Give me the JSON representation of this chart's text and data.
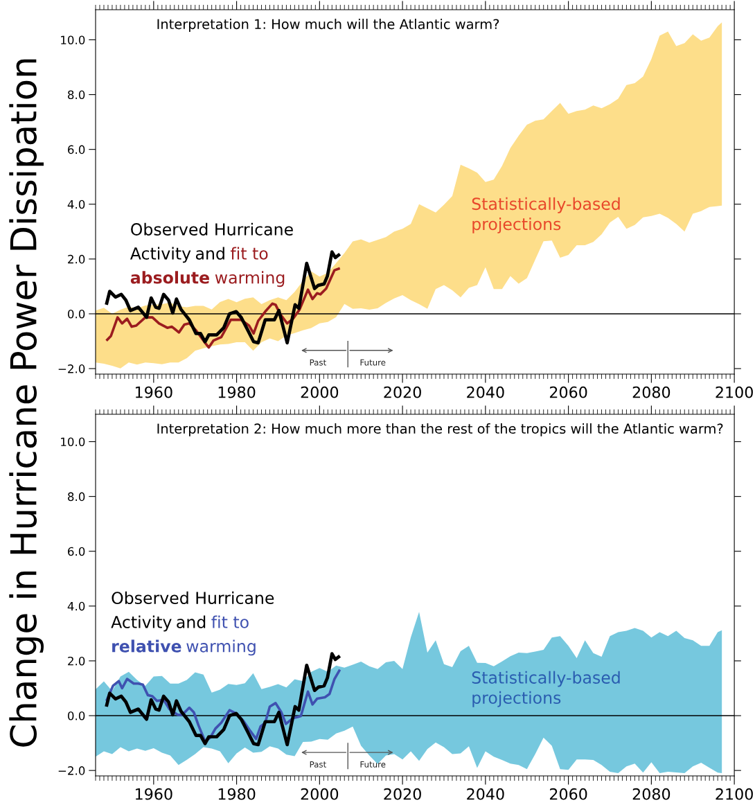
{
  "chart_data": [
    {
      "type": "line",
      "title": "Interpretation 1: How much will the Atlantic warm?",
      "ylabel": "Change in Hurricane Power Dissipation",
      "xlim": [
        1946,
        2100
      ],
      "xticks": [
        1960,
        1980,
        2000,
        2020,
        2040,
        2060,
        2080,
        2100
      ],
      "ylim": [
        -2.2,
        11.1
      ],
      "yticks": [
        {
          "value": -2,
          "label": "−2.0"
        },
        {
          "value": 0,
          "label": "0.0"
        },
        {
          "value": 2,
          "label": "2.0"
        },
        {
          "value": 4,
          "label": "4.0"
        },
        {
          "value": 6,
          "label": "6.0"
        },
        {
          "value": 8,
          "label": "8.0"
        },
        {
          "value": 10,
          "label": "10.0"
        }
      ],
      "ref_lines": [
        {
          "axis": "y",
          "value": 0,
          "color": "#000000"
        }
      ],
      "annotations": [
        "and",
        "Past",
        "Future",
        "Statistically-based\nprojections"
      ],
      "series": [
        {
          "color": "#fdde8a",
          "values": [
            null,
            null,
            null,
            null,
            null,
            null,
            null,
            null,
            null,
            null,
            null,
            null,
            null,
            null,
            null,
            null,
            null,
            null,
            null,
            null,
            null,
            null,
            null,
            null,
            null,
            null,
            null,
            null,
            null,
            null,
            null,
            null,
            null,
            null,
            null,
            null,
            null,
            null,
            null,
            null,
            null,
            null,
            null,
            null,
            null,
            null,
            null,
            null,
            null,
            null,
            null,
            null,
            null,
            null,
            null,
            null,
            null,
            null,
            null,
            null,
            null,
            null,
            null,
            null,
            null,
            null,
            null,
            null,
            null,
            null,
            null,
            null,
            null,
            null,
            null,
            null,
            null
          ],
          "x": [
            1946,
            1948,
            1950,
            1952,
            1954,
            1956,
            1958,
            1960,
            1962,
            1964,
            1966,
            1968,
            1970,
            1972,
            1974,
            1976,
            1978,
            1980,
            1982,
            1984,
            1986,
            1988,
            1990,
            1992,
            1994,
            1996,
            1998,
            2000,
            2002,
            2004,
            2006,
            2008,
            2010,
            2012,
            2014,
            2016,
            2018,
            2020,
            2022,
            2024,
            2026,
            2028,
            2030,
            2032,
            2034,
            2036,
            2038,
            2040,
            2042,
            2044,
            2046,
            2048,
            2050,
            2052,
            2054,
            2056,
            2058,
            2060,
            2062,
            2064,
            2066,
            2068,
            2070,
            2072,
            2074,
            2076,
            2078,
            2080,
            2082,
            2084,
            2086,
            2088,
            2090,
            2092,
            2094,
            2096,
            2097
          ],
          "upper": [
            0.12,
            0.22,
            0.0,
            0.15,
            0.26,
            0.2,
            0.3,
            0.33,
            0.35,
            0.41,
            0.28,
            0.24,
            0.29,
            0.29,
            0.16,
            0.43,
            0.54,
            0.42,
            0.55,
            0.6,
            0.35,
            0.5,
            0.6,
            0.5,
            0.8,
            1.2,
            1.55,
            1.36,
            1.5,
            1.85,
            2.22,
            2.64,
            2.72,
            2.6,
            2.7,
            2.8,
            3.0,
            3.1,
            3.28,
            4.0,
            3.85,
            3.7,
            3.98,
            4.3,
            5.44,
            5.31,
            5.15,
            4.81,
            4.9,
            5.4,
            6.05,
            6.5,
            6.9,
            7.05,
            7.1,
            7.4,
            7.7,
            7.3,
            7.4,
            7.45,
            7.6,
            7.5,
            7.65,
            7.85,
            8.35,
            8.42,
            8.66,
            9.3,
            10.15,
            10.3,
            9.77,
            9.88,
            10.2,
            9.97,
            10.08,
            10.5,
            10.64
          ],
          "lower": [
            -1.78,
            -1.82,
            -1.9,
            -1.99,
            -1.78,
            -1.85,
            -1.78,
            -1.8,
            -1.84,
            -1.78,
            -1.78,
            -1.62,
            -1.35,
            -1.26,
            -1.18,
            -1.12,
            -1.1,
            -1.04,
            -1.04,
            -1.35,
            -1.04,
            -0.9,
            -1.0,
            -0.79,
            -0.7,
            -0.6,
            -0.52,
            -0.35,
            -0.3,
            -0.12,
            0.36,
            0.18,
            0.2,
            0.15,
            0.2,
            0.4,
            0.56,
            0.68,
            0.5,
            0.35,
            0.18,
            0.9,
            1.05,
            0.86,
            0.6,
            0.95,
            1.05,
            1.7,
            0.9,
            0.9,
            1.38,
            1.1,
            1.3,
            1.98,
            2.65,
            2.67,
            2.05,
            2.15,
            2.5,
            2.5,
            2.62,
            2.9,
            3.33,
            3.54,
            3.1,
            3.24,
            3.52,
            3.57,
            3.65,
            3.5,
            3.28,
            3.0,
            3.65,
            3.75,
            3.9,
            3.93,
            3.95
          ]
        },
        {
          "name": "fit to\nabsolute warming",
          "color": "#9b1c1f",
          "x": [
            1948.6,
            1949.7,
            1951.3,
            1952.4,
            1953.6,
            1954.7,
            1955.8,
            1958.0,
            1959.7,
            1961.3,
            1963.3,
            1964.4,
            1966.1,
            1967.4,
            1968.6,
            1970.2,
            1972.2,
            1973.3,
            1974.4,
            1976.3,
            1978.6,
            1981.1,
            1983.0,
            1984.1,
            1985.2,
            1986.9,
            1988.6,
            1989.4,
            1990.5,
            1992.2,
            1993.6,
            1995.2,
            1997.2,
            1998.3,
            1999.4,
            2000.2,
            2001.6,
            2003.6,
            2004.9
          ],
          "values": [
            -0.98,
            -0.81,
            -0.13,
            -0.35,
            -0.18,
            -0.47,
            -0.43,
            -0.13,
            -0.13,
            -0.35,
            -0.51,
            -0.47,
            -0.68,
            -0.39,
            -0.35,
            -0.6,
            -1.02,
            -1.23,
            -0.98,
            -0.85,
            -0.22,
            -0.22,
            -0.43,
            -0.72,
            -0.26,
            0.08,
            0.37,
            0.33,
            -0.01,
            -0.35,
            -0.18,
            0.16,
            0.88,
            0.54,
            0.75,
            0.71,
            0.92,
            1.59,
            1.66
          ]
        },
        {
          "name": "Observed Hurricane\nActivity",
          "color": "#000000",
          "x": [
            1948.6,
            1949.4,
            1950.8,
            1952.2,
            1953.3,
            1954.4,
            1956.3,
            1958.3,
            1959.4,
            1960.5,
            1961.3,
            1962.4,
            1963.6,
            1964.6,
            1965.5,
            1966.6,
            1968.6,
            1970.2,
            1971.3,
            1972.4,
            1973.3,
            1975.2,
            1976.9,
            1978.3,
            1979.9,
            1981.1,
            1982.7,
            1984.1,
            1985.2,
            1986.9,
            1989.1,
            1990.2,
            1992.2,
            1994.1,
            1995.0,
            1996.9,
            1998.8,
            1999.7,
            2001.1,
            2001.9,
            2003.0,
            2003.8,
            2004.9
          ],
          "values": [
            0.33,
            0.82,
            0.61,
            0.71,
            0.5,
            0.12,
            0.24,
            -0.13,
            0.58,
            0.24,
            0.2,
            0.71,
            0.5,
            0.03,
            0.54,
            0.16,
            -0.22,
            -0.72,
            -0.72,
            -1.02,
            -0.77,
            -0.77,
            -0.51,
            0.0,
            0.08,
            -0.13,
            -0.6,
            -1.02,
            -1.06,
            -0.22,
            -0.22,
            0.12,
            -1.06,
            0.33,
            0.2,
            1.84,
            0.92,
            1.04,
            1.09,
            1.38,
            2.26,
            2.05,
            2.18
          ]
        }
      ]
    },
    {
      "type": "line",
      "title": "Interpretation 2: How much more than the rest of the tropics will the Atlantic warm?",
      "xlim": [
        1946,
        2100
      ],
      "xticks": [
        1960,
        1980,
        2000,
        2020,
        2040,
        2060,
        2080,
        2100
      ],
      "ylim": [
        -2.2,
        11.0
      ],
      "yticks": [
        {
          "value": -2,
          "label": "−2.0"
        },
        {
          "value": 0,
          "label": "0.0"
        },
        {
          "value": 2,
          "label": "2.0"
        },
        {
          "value": 4,
          "label": "4.0"
        },
        {
          "value": 6,
          "label": "6.0"
        },
        {
          "value": 8,
          "label": "8.0"
        },
        {
          "value": 10,
          "label": "10.0"
        }
      ],
      "ref_lines": [
        {
          "axis": "y",
          "value": 0,
          "color": "#000000"
        }
      ],
      "annotations": [
        "and",
        "Past",
        "Future",
        "Statistically-based\nprojections"
      ],
      "series": [
        {
          "color": "#76c8de",
          "values": [
            null,
            null,
            null,
            null,
            null,
            null,
            null,
            null,
            null,
            null,
            null,
            null,
            null,
            null,
            null,
            null,
            null,
            null,
            null,
            null,
            null,
            null,
            null,
            null,
            null,
            null,
            null,
            null,
            null,
            null,
            null,
            null,
            null,
            null,
            null,
            null,
            null,
            null,
            null,
            null,
            null,
            null,
            null,
            null,
            null,
            null,
            null,
            null,
            null,
            null,
            null,
            null,
            null,
            null,
            null,
            null,
            null,
            null,
            null,
            null,
            null,
            null,
            null,
            null,
            null,
            null,
            null,
            null,
            null,
            null,
            null,
            null,
            null,
            null,
            null,
            null,
            null
          ],
          "x": [
            1946,
            1948,
            1950,
            1952,
            1954,
            1956,
            1958,
            1960,
            1962,
            1964,
            1966,
            1968,
            1970,
            1972,
            1974,
            1976,
            1978,
            1980,
            1982,
            1984,
            1986,
            1988,
            1990,
            1992,
            1994,
            1996,
            1998,
            2000,
            2002,
            2004,
            2006,
            2008,
            2010,
            2012,
            2014,
            2016,
            2018,
            2020,
            2022,
            2024,
            2026,
            2028,
            2030,
            2032,
            2034,
            2036,
            2038,
            2040,
            2042,
            2044,
            2046,
            2048,
            2050,
            2052,
            2054,
            2056,
            2058,
            2060,
            2062,
            2064,
            2066,
            2068,
            2070,
            2072,
            2074,
            2076,
            2078,
            2080,
            2082,
            2084,
            2086,
            2088,
            2090,
            2092,
            2094,
            2096,
            2097
          ],
          "upper": [
            0.96,
            1.25,
            0.9,
            1.43,
            1.6,
            1.3,
            1.09,
            1.43,
            1.45,
            1.17,
            1.17,
            1.3,
            1.58,
            1.5,
            0.84,
            0.95,
            1.16,
            1.12,
            1.18,
            1.55,
            0.97,
            1.05,
            1.15,
            1.03,
            1.33,
            1.26,
            1.6,
            1.74,
            1.6,
            1.83,
            1.75,
            1.86,
            1.97,
            1.8,
            1.7,
            1.95,
            2.0,
            1.7,
            2.86,
            3.79,
            2.3,
            2.75,
            1.88,
            1.77,
            2.35,
            2.55,
            1.93,
            1.92,
            1.8,
            1.98,
            2.17,
            2.3,
            2.28,
            2.34,
            2.4,
            2.85,
            2.9,
            2.55,
            2.1,
            2.75,
            2.28,
            2.15,
            2.9,
            3.05,
            3.1,
            3.2,
            3.1,
            2.85,
            3.05,
            2.9,
            3.1,
            2.83,
            2.75,
            2.55,
            2.55,
            3.05,
            3.12
          ],
          "lower": [
            -1.5,
            -1.3,
            -1.4,
            -1.15,
            -1.3,
            -1.2,
            -1.28,
            -1.19,
            -1.35,
            -1.45,
            -1.8,
            -1.61,
            -1.4,
            -1.15,
            -1.2,
            -1.3,
            -1.74,
            -1.38,
            -1.16,
            -1.35,
            -1.32,
            -1.12,
            -1.2,
            -1.42,
            -1.48,
            -0.96,
            -0.95,
            -0.85,
            -0.88,
            -0.65,
            -0.55,
            -0.4,
            -1.1,
            -1.45,
            -1.76,
            -1.45,
            -1.4,
            -1.6,
            -1.3,
            -1.65,
            -1.22,
            -0.98,
            -1.15,
            -1.4,
            -1.38,
            -1.12,
            -1.91,
            -1.3,
            -1.5,
            -1.62,
            -1.75,
            -1.8,
            -1.95,
            -1.4,
            -0.8,
            -1.1,
            -1.95,
            -1.98,
            -1.6,
            -1.6,
            -1.62,
            -1.8,
            -2.05,
            -2.1,
            -1.85,
            -1.75,
            -2.08,
            -1.7,
            -2.1,
            -2.05,
            -2.07,
            -2.1,
            -1.85,
            -1.72,
            -1.9,
            -2.08,
            -2.1
          ]
        },
        {
          "name": "fit to\nrelative warming",
          "color": "#3f51b0",
          "x": [
            1948.6,
            1950.2,
            1951.6,
            1952.4,
            1953.6,
            1955.2,
            1956.3,
            1957.4,
            1958.6,
            1959.7,
            1960.8,
            1962.4,
            1963.8,
            1965.8,
            1966.9,
            1968.6,
            1969.7,
            1970.8,
            1972.4,
            1973.6,
            1974.9,
            1976.3,
            1978.3,
            1979.9,
            1981.6,
            1983.3,
            1984.7,
            1985.8,
            1986.9,
            1988.0,
            1989.4,
            1990.8,
            1991.9,
            1993.6,
            1994.7,
            1995.5,
            1997.2,
            1998.3,
            1999.4,
            2001.3,
            2002.4,
            2003.6,
            2004.9
          ],
          "values": [
            0.54,
            1.09,
            1.26,
            1.0,
            1.34,
            1.17,
            1.17,
            1.13,
            0.75,
            0.71,
            0.54,
            0.58,
            0.24,
            0.03,
            0.03,
            0.29,
            0.12,
            -0.35,
            -0.94,
            -0.81,
            -0.47,
            -0.26,
            0.2,
            0.08,
            -0.18,
            -0.56,
            -0.85,
            -0.39,
            -0.26,
            0.33,
            0.46,
            0.12,
            -0.3,
            -0.09,
            -0.05,
            -0.01,
            0.88,
            0.41,
            0.62,
            0.67,
            0.79,
            1.34,
            1.68
          ]
        },
        {
          "name": "Observed Hurricane\nActivity",
          "color": "#000000",
          "x": [
            1948.6,
            1949.4,
            1950.8,
            1952.2,
            1953.3,
            1954.4,
            1956.3,
            1958.3,
            1959.4,
            1960.5,
            1961.3,
            1962.4,
            1963.6,
            1964.6,
            1965.5,
            1966.6,
            1968.6,
            1970.2,
            1971.3,
            1972.4,
            1973.3,
            1975.2,
            1976.9,
            1978.3,
            1979.9,
            1981.1,
            1982.7,
            1984.1,
            1985.2,
            1986.9,
            1989.1,
            1990.2,
            1992.2,
            1994.1,
            1995.0,
            1996.9,
            1998.8,
            1999.7,
            2001.1,
            2001.9,
            2003.0,
            2003.8,
            2004.9
          ],
          "values": [
            0.33,
            0.82,
            0.61,
            0.71,
            0.5,
            0.12,
            0.24,
            -0.13,
            0.58,
            0.24,
            0.2,
            0.71,
            0.5,
            0.03,
            0.54,
            0.16,
            -0.22,
            -0.72,
            -0.72,
            -1.02,
            -0.77,
            -0.77,
            -0.51,
            0.0,
            0.08,
            -0.13,
            -0.6,
            -1.02,
            -1.06,
            -0.22,
            -0.22,
            0.12,
            -1.06,
            0.33,
            0.2,
            1.84,
            0.92,
            1.04,
            1.09,
            1.38,
            2.26,
            2.05,
            2.18
          ]
        }
      ]
    }
  ]
}
